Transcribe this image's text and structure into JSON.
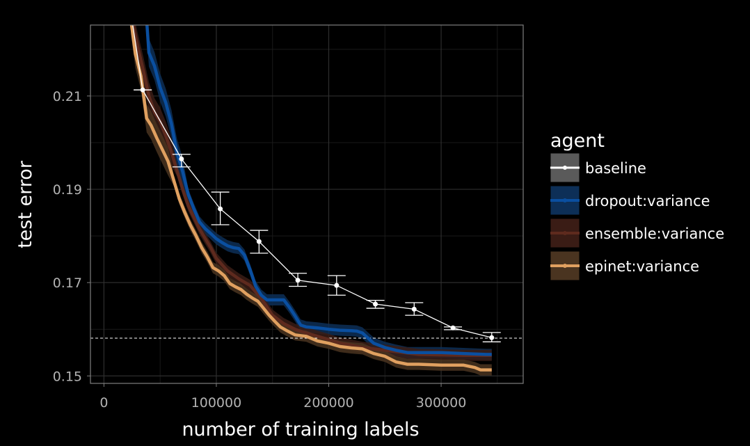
{
  "chart_data": {
    "type": "line",
    "xlabel": "number of training labels",
    "ylabel": "test error",
    "xlim": [
      -12000,
      373000
    ],
    "ylim": [
      0.1484,
      0.2252
    ],
    "xticks": [
      0,
      100000,
      200000,
      300000
    ],
    "xtick_labels": [
      "0",
      "100000",
      "200000",
      "300000"
    ],
    "yticks": [
      0.15,
      0.17,
      0.19,
      0.21
    ],
    "ytick_labels": [
      "0.15",
      "0.17",
      "0.19",
      "0.21"
    ],
    "grid": true,
    "legend": {
      "title": "agent",
      "placement": "right"
    },
    "reference_line": {
      "y": 0.1581,
      "style": "dashed",
      "color": "#ffffff"
    },
    "series": [
      {
        "name": "baseline",
        "color": "#ffffff",
        "band_color": "#5a5a5a",
        "style": "points-with-errorbars",
        "x": [
          25000,
          34500,
          69000,
          103500,
          138000,
          172500,
          207000,
          241500,
          276000,
          310500,
          345000
        ],
        "y": [
          0.2262,
          0.2113,
          0.1965,
          0.1858,
          0.1788,
          0.1705,
          0.1694,
          0.1654,
          0.1643,
          0.1603,
          0.1582
        ],
        "err_low": [
          null,
          0.2113,
          0.1948,
          0.1824,
          0.1763,
          0.1692,
          0.1673,
          0.1645,
          0.163,
          0.1599,
          0.1573
        ],
        "err_high": [
          null,
          0.2113,
          0.1975,
          0.1894,
          0.1812,
          0.172,
          0.1715,
          0.1662,
          0.1657,
          0.1605,
          0.1593
        ]
      },
      {
        "name": "dropout:variance",
        "color": "#0a4fa0",
        "band_color": "#0d2f57",
        "style": "line-with-band",
        "x": [
          38000,
          40000,
          45000,
          50000,
          55000,
          60000,
          65000,
          70000,
          75000,
          80000,
          85000,
          90000,
          95000,
          100000,
          105000,
          110000,
          115000,
          120000,
          125000,
          130000,
          135000,
          140000,
          145000,
          150000,
          155000,
          160000,
          165000,
          170000,
          175000,
          180000,
          190000,
          200000,
          210000,
          220000,
          225000,
          230000,
          240000,
          250000,
          260000,
          270000,
          280000,
          300000,
          320000,
          340000,
          345000
        ],
        "y": [
          0.2262,
          0.2193,
          0.2164,
          0.2118,
          0.2086,
          0.2041,
          0.1978,
          0.1938,
          0.1889,
          0.1858,
          0.183,
          0.1816,
          0.1805,
          0.1794,
          0.1786,
          0.1779,
          0.1775,
          0.1773,
          0.1759,
          0.1728,
          0.1692,
          0.1673,
          0.1663,
          0.1663,
          0.1663,
          0.1663,
          0.1647,
          0.1629,
          0.1609,
          0.1605,
          0.1603,
          0.16,
          0.1598,
          0.1597,
          0.1596,
          0.1592,
          0.157,
          0.1561,
          0.1555,
          0.155,
          0.155,
          0.155,
          0.1548,
          0.1546,
          0.1546
        ],
        "band_halfwidth": 0.0012
      },
      {
        "name": "ensemble:variance",
        "color": "#5e2a1e",
        "band_color": "#3a1c15",
        "style": "line-with-band",
        "x": [
          25000,
          30000,
          35000,
          40000,
          45000,
          50000,
          55000,
          60000,
          65000,
          70000,
          75000,
          80000,
          85000,
          90000,
          95000,
          100000,
          110000,
          120000,
          130000,
          140000,
          150000,
          160000,
          170000,
          180000,
          190000,
          200000,
          210000,
          220000,
          230000,
          240000,
          260000,
          280000,
          300000,
          320000,
          345000
        ],
        "y": [
          0.2262,
          0.2205,
          0.2155,
          0.21,
          0.2065,
          0.2045,
          0.2015,
          0.198,
          0.194,
          0.19,
          0.1865,
          0.184,
          0.1815,
          0.1795,
          0.1775,
          0.1752,
          0.1725,
          0.1708,
          0.1694,
          0.1666,
          0.163,
          0.1612,
          0.16,
          0.1592,
          0.1585,
          0.1578,
          0.157,
          0.1566,
          0.1561,
          0.1558,
          0.1552,
          0.1546,
          0.1545,
          0.1544,
          0.1544
        ],
        "band_halfwidth": 0.0012
      },
      {
        "name": "epinet:variance",
        "color": "#e0a060",
        "band_color": "#4a3420",
        "style": "line-with-band",
        "x": [
          24000,
          28000,
          33000,
          38000,
          42000,
          47000,
          52000,
          57000,
          62000,
          67000,
          72000,
          77000,
          82000,
          87000,
          92000,
          97000,
          102000,
          107000,
          112000,
          117000,
          122000,
          127000,
          132000,
          137000,
          142000,
          147000,
          152000,
          157000,
          162000,
          170000,
          180000,
          190000,
          200000,
          210000,
          220000,
          230000,
          240000,
          250000,
          260000,
          270000,
          280000,
          300000,
          320000,
          330000,
          335000,
          345000
        ],
        "y": [
          0.2262,
          0.219,
          0.2142,
          0.2052,
          0.2037,
          0.201,
          0.1985,
          0.196,
          0.192,
          0.188,
          0.185,
          0.1823,
          0.18,
          0.1775,
          0.1755,
          0.1732,
          0.1725,
          0.1715,
          0.1698,
          0.1691,
          0.1685,
          0.1675,
          0.1667,
          0.166,
          0.1645,
          0.163,
          0.1617,
          0.1605,
          0.1598,
          0.1588,
          0.1585,
          0.1575,
          0.157,
          0.1563,
          0.156,
          0.1558,
          0.1548,
          0.1542,
          0.153,
          0.1525,
          0.1525,
          0.1523,
          0.1523,
          0.1518,
          0.1513,
          0.1513
        ],
        "band_halfwidth": 0.0012
      }
    ]
  }
}
